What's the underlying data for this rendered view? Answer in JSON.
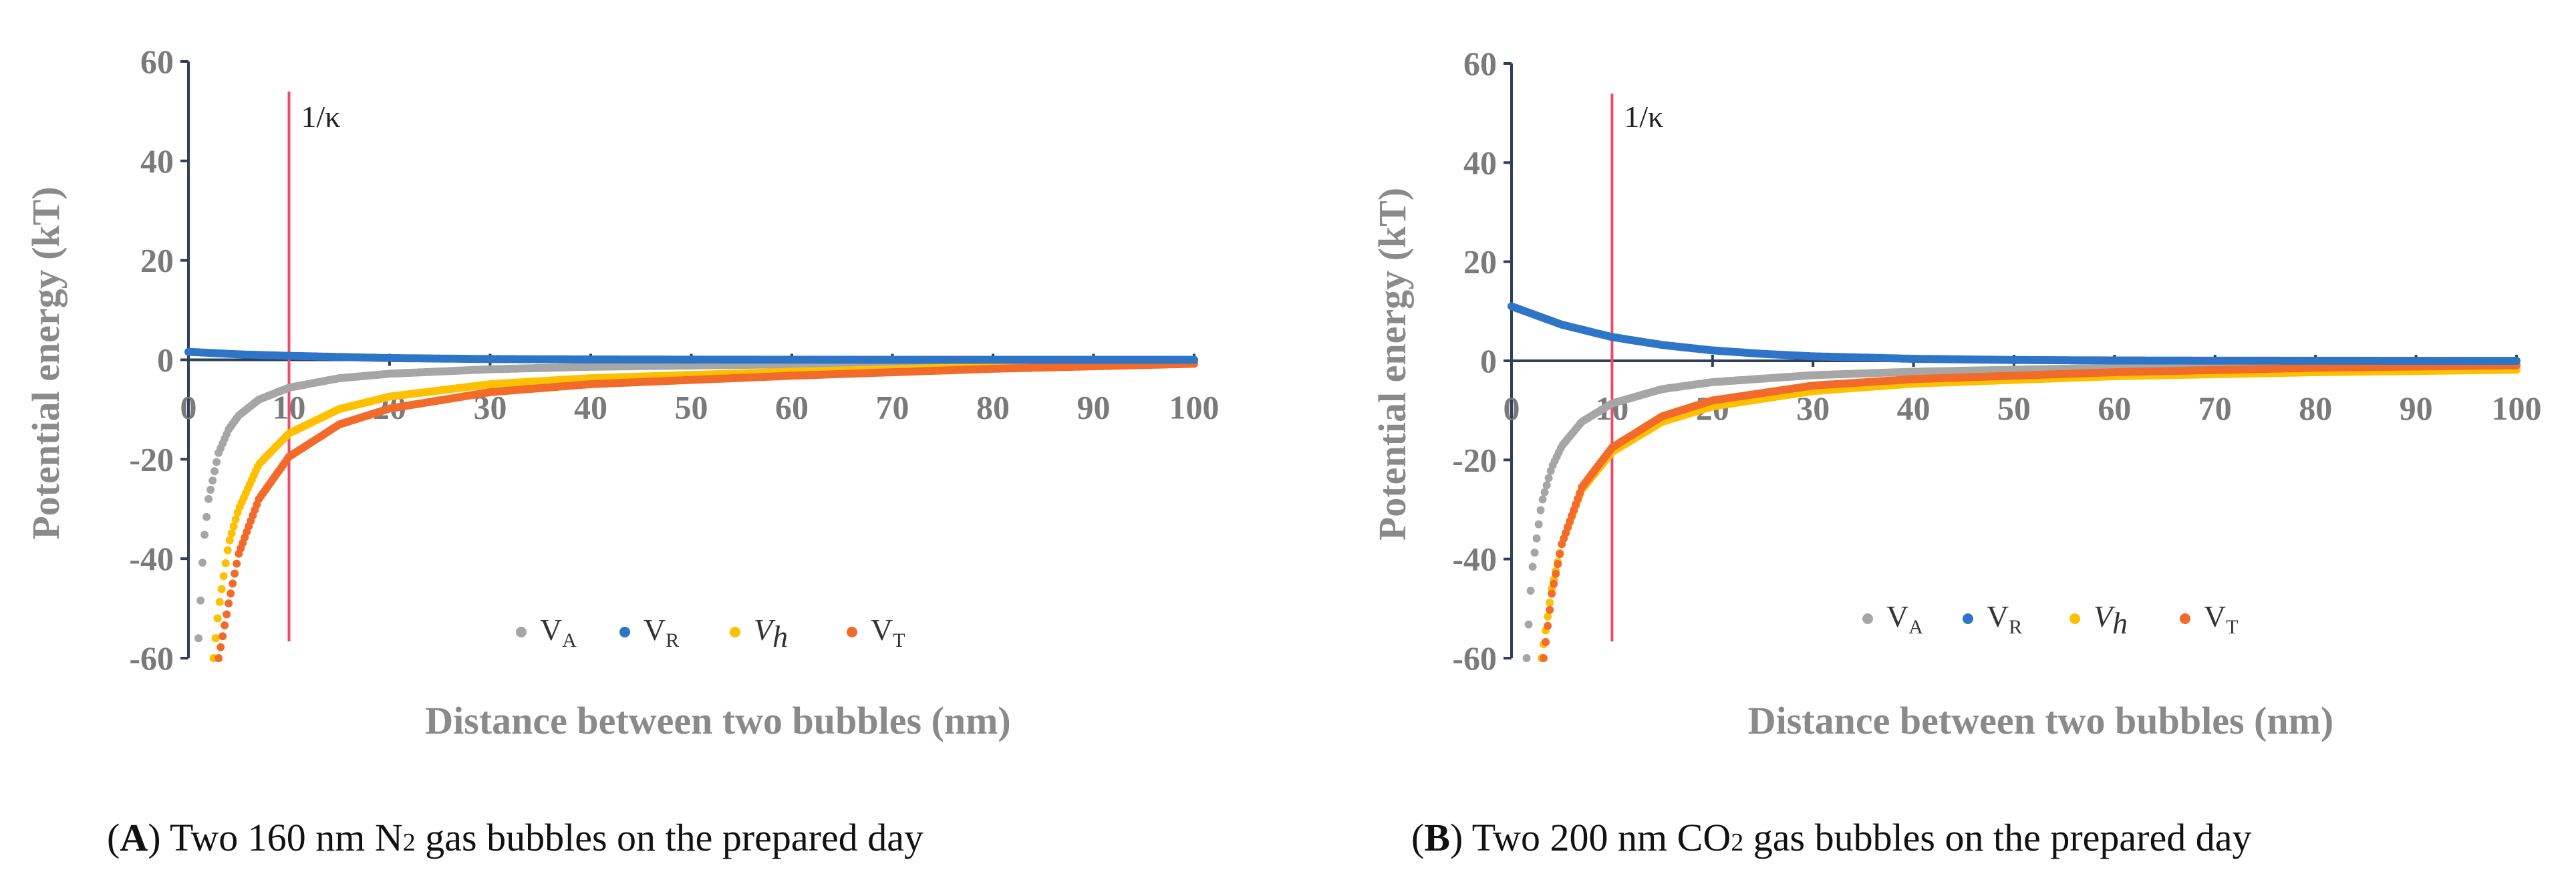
{
  "chart_data": [
    {
      "type": "scatter",
      "panel": "A",
      "xlabel": "Distance between two bubbles (nm)",
      "ylabel": "Potential energy (kT)",
      "xlim": [
        0,
        100
      ],
      "ylim": [
        -60,
        60
      ],
      "xticks": [
        0,
        10,
        20,
        30,
        40,
        50,
        60,
        70,
        80,
        90,
        100
      ],
      "yticks": [
        60,
        40,
        20,
        0,
        -20,
        -40,
        -60
      ],
      "kappa_line": {
        "x": 10,
        "label": "1/κ"
      },
      "legend": [
        {
          "key": "VA",
          "base": "V",
          "sub": "A",
          "italic": false,
          "color": "#a6a6a6"
        },
        {
          "key": "VR",
          "base": "V",
          "sub": "R",
          "italic": false,
          "color": "#2e75c8"
        },
        {
          "key": "Vh",
          "base": "V",
          "sub": "h",
          "italic": true,
          "color": "#ffc000"
        },
        {
          "key": "VT",
          "base": "V",
          "sub": "T",
          "italic": false,
          "color": "#f26b2a"
        }
      ],
      "series": [
        {
          "name": "VA",
          "x": [
            1,
            1.5,
            2,
            3,
            4,
            5,
            7,
            10,
            15,
            20,
            30,
            40,
            60,
            80,
            100
          ],
          "y": [
            -56,
            -37,
            -28,
            -18.7,
            -14,
            -11.2,
            -8,
            -5.6,
            -3.7,
            -2.8,
            -1.9,
            -1.4,
            -0.9,
            -0.7,
            -0.6
          ]
        },
        {
          "name": "VR",
          "x": [
            0,
            5,
            10,
            20,
            30,
            40,
            60,
            80,
            100
          ],
          "y": [
            1.6,
            1.1,
            0.8,
            0.35,
            0.15,
            0.07,
            0.01,
            0,
            0
          ]
        },
        {
          "name": "Vh",
          "x": [
            2.5,
            3,
            4,
            5,
            7,
            10,
            15,
            20,
            30,
            40,
            60,
            80,
            100
          ],
          "y": [
            -60,
            -50,
            -37,
            -30,
            -21,
            -14.8,
            -9.9,
            -7.4,
            -4.9,
            -3.7,
            -2.4,
            -1.4,
            -0.5
          ]
        },
        {
          "name": "VT",
          "x": [
            3,
            4,
            5,
            7,
            10,
            15,
            20,
            30,
            40,
            60,
            80,
            100
          ],
          "y": [
            -60,
            -49,
            -39,
            -28,
            -19.5,
            -13,
            -9.8,
            -6.5,
            -4.9,
            -3.2,
            -1.8,
            -0.8
          ]
        }
      ],
      "caption": {
        "letter": "A",
        "before": " Two 160 nm N",
        "sub": "2",
        "after": " gas bubbles on the prepared day"
      }
    },
    {
      "type": "scatter",
      "panel": "B",
      "xlabel": "Distance between two bubbles (nm)",
      "ylabel": "Potential energy (kT)",
      "xlim": [
        0,
        100
      ],
      "ylim": [
        -60,
        60
      ],
      "xticks": [
        0,
        10,
        20,
        30,
        40,
        50,
        60,
        70,
        80,
        90,
        100
      ],
      "yticks": [
        60,
        40,
        20,
        0,
        -20,
        -40,
        -60
      ],
      "kappa_line": {
        "x": 10,
        "label": "1/κ"
      },
      "legend": [
        {
          "key": "VA",
          "base": "V",
          "sub": "A",
          "italic": false,
          "color": "#a6a6a6"
        },
        {
          "key": "VR",
          "base": "V",
          "sub": "R",
          "italic": false,
          "color": "#2e75c8"
        },
        {
          "key": "Vh",
          "base": "V",
          "sub": "h",
          "italic": true,
          "color": "#ffc000"
        },
        {
          "key": "VT",
          "base": "V",
          "sub": "T",
          "italic": false,
          "color": "#f26b2a"
        }
      ],
      "series": [
        {
          "name": "VA",
          "x": [
            1.5,
            2,
            3,
            4,
            5,
            7,
            10,
            15,
            20,
            30,
            40,
            60,
            80,
            100
          ],
          "y": [
            -60,
            -43,
            -28.7,
            -21.5,
            -17.2,
            -12.3,
            -8.6,
            -5.7,
            -4.3,
            -2.9,
            -2.2,
            -1.4,
            -1.1,
            -0.9
          ]
        },
        {
          "name": "VR",
          "x": [
            0,
            5,
            10,
            15,
            20,
            25,
            30,
            40,
            50,
            60,
            80,
            100
          ],
          "y": [
            11,
            7.3,
            4.8,
            3.2,
            2.1,
            1.4,
            0.9,
            0.4,
            0.17,
            0.07,
            0.01,
            0
          ]
        },
        {
          "name": "Vh",
          "x": [
            3,
            4,
            5,
            7,
            10,
            15,
            20,
            30,
            40,
            60,
            80,
            100
          ],
          "y": [
            -60,
            -46,
            -37,
            -26,
            -18.4,
            -12.3,
            -9.2,
            -6.1,
            -4.6,
            -3.1,
            -2.3,
            -1.8
          ]
        },
        {
          "name": "VT",
          "x": [
            3.2,
            4,
            5,
            7,
            10,
            15,
            20,
            30,
            40,
            60,
            80,
            100
          ],
          "y": [
            -60,
            -47,
            -37,
            -25.5,
            -17.5,
            -11.2,
            -8,
            -5,
            -3.7,
            -2.3,
            -1.4,
            -0.9
          ]
        }
      ],
      "caption": {
        "letter": "B",
        "before": " Two 200 nm CO",
        "sub": "2",
        "after": " gas bubbles on the prepared day"
      }
    }
  ]
}
